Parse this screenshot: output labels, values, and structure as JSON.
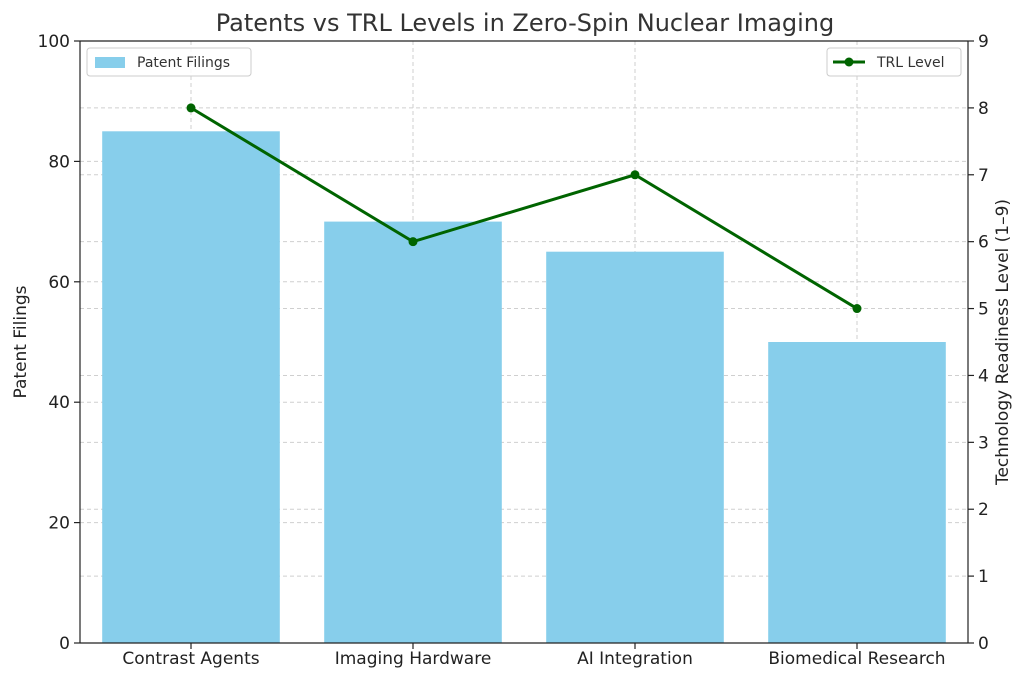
{
  "chart_data": {
    "type": "bar",
    "title": "Patents vs TRL Levels in Zero-Spin Nuclear Imaging",
    "categories": [
      "Contrast Agents",
      "Imaging Hardware",
      "AI Integration",
      "Biomedical Research"
    ],
    "series": [
      {
        "name": "Patent Filings",
        "type": "bar",
        "axis": "left",
        "values": [
          85,
          70,
          65,
          50
        ],
        "color": "#87CEEB"
      },
      {
        "name": "TRL Level",
        "type": "line",
        "axis": "right",
        "values": [
          8,
          6,
          7,
          5
        ],
        "color": "#006400"
      }
    ],
    "ylabel": "Patent Filings",
    "ylim": [
      0,
      100
    ],
    "yticks": [
      "0",
      "20",
      "40",
      "60",
      "80",
      "100"
    ],
    "y2label": "Technology Readiness Level (1–9)",
    "y2lim": [
      0,
      9
    ],
    "y2ticks": [
      "0",
      "1",
      "2",
      "3",
      "4",
      "5",
      "6",
      "7",
      "8",
      "9"
    ],
    "grid": true,
    "legend": [
      {
        "label": "Patent Filings",
        "placement": "top-left"
      },
      {
        "label": "TRL Level",
        "placement": "top-right"
      }
    ]
  }
}
